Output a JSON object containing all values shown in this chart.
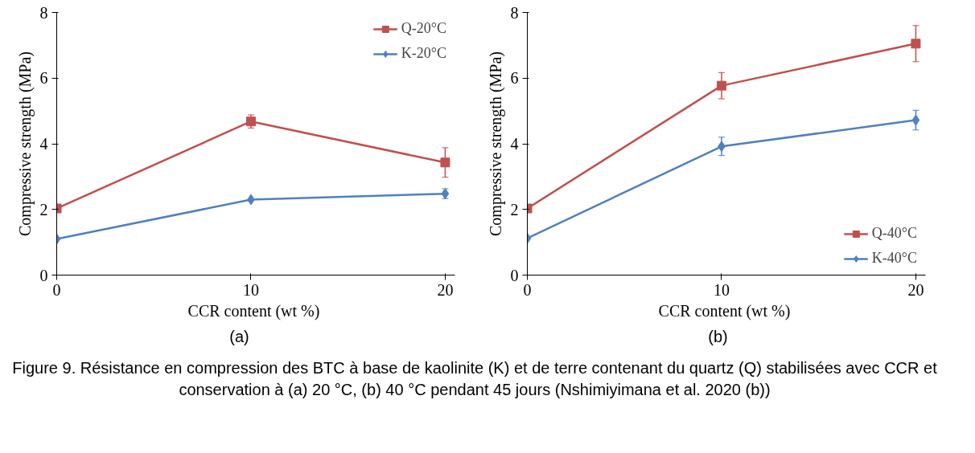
{
  "chart_data": [
    {
      "type": "line",
      "xlabel": "CCR content  (wt %)",
      "ylabel": "Compressive strength (MPa)",
      "x": [
        0,
        10,
        20
      ],
      "xlim": [
        0,
        20.5
      ],
      "xticks": [
        0,
        10,
        20
      ],
      "ylim": [
        0,
        8
      ],
      "yticks": [
        0,
        2,
        4,
        6,
        8
      ],
      "grid": false,
      "legend": "top right",
      "line_style": "solid",
      "series": [
        {
          "name": "Q-20°C",
          "color": "#c0504d",
          "marker": "square",
          "values": [
            2.03,
            4.68,
            3.43
          ],
          "errors": [
            null,
            0.2,
            0.45
          ]
        },
        {
          "name": "K-20°C",
          "color": "#4f81bd",
          "marker": "diamond",
          "values": [
            1.1,
            2.3,
            2.48
          ],
          "errors": [
            null,
            null,
            0.15
          ]
        }
      ],
      "annotations": [
        "(a)"
      ]
    },
    {
      "type": "line",
      "xlabel": "CCR content  (wt %)",
      "ylabel": "Compressive strength (MPa)",
      "x": [
        0,
        10,
        20
      ],
      "xlim": [
        0,
        20.5
      ],
      "xticks": [
        0,
        10,
        20
      ],
      "ylim": [
        0,
        8
      ],
      "yticks": [
        0,
        2,
        4,
        6,
        8
      ],
      "grid": false,
      "legend": "bottom right",
      "line_style": "solid",
      "series": [
        {
          "name": "Q-40°C",
          "color": "#c0504d",
          "marker": "square",
          "values": [
            2.03,
            5.77,
            7.05
          ],
          "errors": [
            null,
            0.4,
            0.55
          ]
        },
        {
          "name": "K-40°C",
          "color": "#4f81bd",
          "marker": "diamond",
          "values": [
            1.12,
            3.92,
            4.72
          ],
          "errors": [
            null,
            0.28,
            0.3
          ]
        }
      ],
      "annotations": [
        "(b)",
        "Figure 9. Résistance en compression des BTC à base de kaolinite (K) et de terre contenant du quartz (Q) stabilisées avec CCR et conservation à (a) 20 °C, (b) 40 °C pendant 45 jours (Nshimiyimana et al. 2020 (b))"
      ]
    }
  ]
}
